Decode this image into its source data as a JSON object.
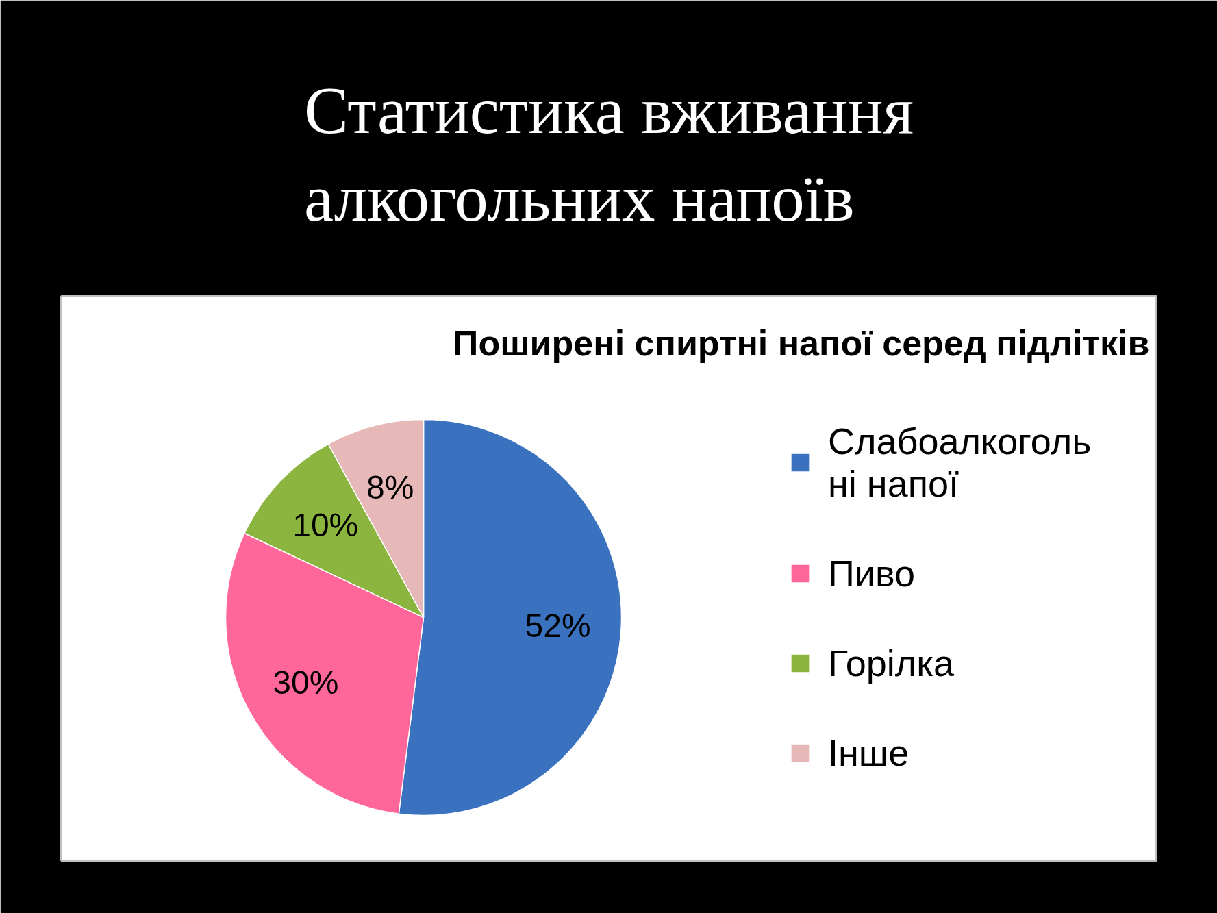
{
  "chart_data": {
    "type": "pie",
    "title": "Статистика вживання алкогольних напоїв",
    "subtitle": "Поширені спиртні напої серед підлітків",
    "categories": [
      "Слабоалкогольні напої",
      "Пиво",
      "Горілка",
      "Інше"
    ],
    "values": [
      52,
      30,
      10,
      8
    ],
    "value_labels": [
      "52%",
      "30%",
      "10%",
      "8%"
    ],
    "colors": [
      "#3b72bf",
      "#ff6699",
      "#8cb53f",
      "#e6b9b8"
    ],
    "legend": "right"
  }
}
